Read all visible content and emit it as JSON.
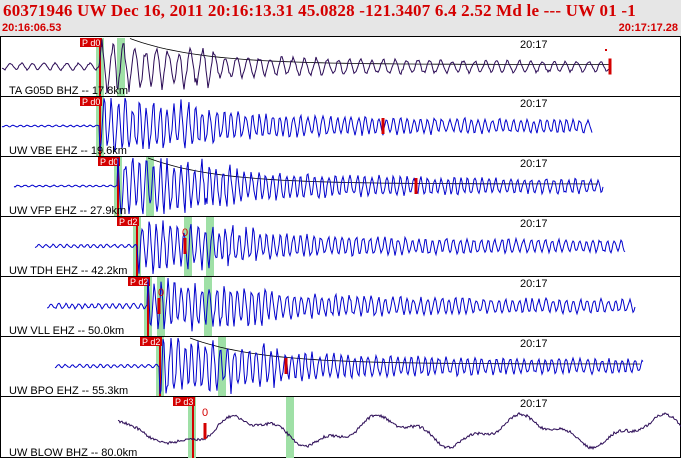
{
  "header": {
    "title": "60371946 UW Dec 16, 2011 20:16:13.31    45.0828 -121.3407   6.4 2.52 Md le --- UW 01   -1",
    "time_start": "20:16:06.53",
    "time_end": "20:17:17.28"
  },
  "colors": {
    "trace_blue": "#0000cc",
    "trace_purple": "#2a0a55",
    "pick_red": "#d40000",
    "window_green": "#9fe0a6",
    "header_bg": "#e6e6e6"
  },
  "panels": [
    {
      "label": "TA G05D BHZ -- 17.8km",
      "time_tick": "20:17",
      "pick": "P d0",
      "trace_color": "purple",
      "zero_mark": ""
    },
    {
      "label": "UW VBE EHZ -- 19.6km",
      "time_tick": "20:17",
      "pick": "P d0",
      "trace_color": "blue",
      "zero_mark": ""
    },
    {
      "label": "UW VFP EHZ -- 27.9km",
      "time_tick": "20:17",
      "pick": "P d0",
      "trace_color": "blue",
      "zero_mark": ""
    },
    {
      "label": "UW TDH EHZ -- 42.2km",
      "time_tick": "20:17",
      "pick": "P d2",
      "trace_color": "blue",
      "zero_mark": "0"
    },
    {
      "label": "UW VLL EHZ -- 50.0km",
      "time_tick": "20:17",
      "pick": "P d2",
      "trace_color": "blue",
      "zero_mark": "0"
    },
    {
      "label": "UW BPO EHZ -- 55.3km",
      "time_tick": "20:17",
      "pick": "P d2",
      "trace_color": "blue",
      "zero_mark": ""
    },
    {
      "label": "UW BLOW BHZ -- 80.0km",
      "time_tick": "20:17",
      "pick": "P d3",
      "trace_color": "purple",
      "zero_mark": "0"
    }
  ]
}
